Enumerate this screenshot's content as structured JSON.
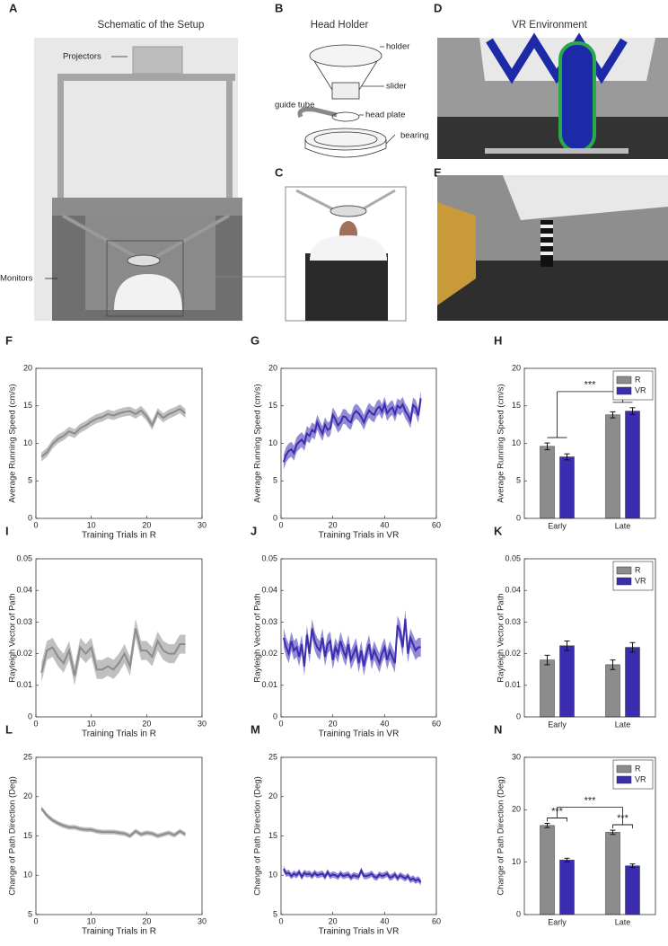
{
  "panels": [
    {
      "label": "A",
      "title": "Schematic of the Setup",
      "callouts": [
        "Projectors",
        "Monitors"
      ]
    },
    {
      "label": "B",
      "title": "Head Holder",
      "callouts": [
        "holder",
        "slider",
        "guide tube",
        "head plate",
        "bearing"
      ]
    },
    {
      "label": "C"
    },
    {
      "label": "D",
      "title": "VR Environment"
    },
    {
      "label": "E"
    }
  ],
  "chart_data": [
    {
      "type": "line",
      "label": "F",
      "y_label": "Average Running Speed (cm/s)",
      "x_label": "Training Trials in R",
      "xlim": [
        0,
        30
      ],
      "xticks": [
        0,
        10,
        20,
        30
      ],
      "ylim": [
        0,
        20
      ],
      "yticks": [
        0,
        5,
        10,
        15,
        20
      ],
      "x": [
        1,
        2,
        3,
        4,
        5,
        6,
        7,
        8,
        9,
        10,
        11,
        12,
        13,
        14,
        15,
        16,
        17,
        18,
        19,
        20,
        21,
        22,
        23,
        24,
        25,
        26,
        27
      ],
      "series": [
        {
          "name": "R",
          "color": "#8c8c8c",
          "error": 0.6,
          "values": [
            8.2,
            8.8,
            9.9,
            10.6,
            11.0,
            11.6,
            11.3,
            12.0,
            12.4,
            12.9,
            13.3,
            13.5,
            13.9,
            13.7,
            14.0,
            14.2,
            14.3,
            13.9,
            14.4,
            13.6,
            12.4,
            14.1,
            13.4,
            13.9,
            14.2,
            14.6,
            14.0
          ]
        }
      ]
    },
    {
      "type": "line",
      "label": "G",
      "y_label": "Average Running Speed (cm/s)",
      "x_label": "Training Trials in VR",
      "xlim": [
        0,
        60
      ],
      "xticks": [
        0,
        20,
        40,
        60
      ],
      "ylim": [
        0,
        20
      ],
      "yticks": [
        0,
        5,
        10,
        15,
        20
      ],
      "x": [
        1,
        2,
        3,
        4,
        5,
        6,
        7,
        8,
        9,
        10,
        11,
        12,
        13,
        14,
        15,
        16,
        17,
        18,
        19,
        20,
        21,
        22,
        23,
        24,
        25,
        26,
        27,
        28,
        29,
        30,
        31,
        32,
        33,
        34,
        35,
        36,
        37,
        38,
        39,
        40,
        41,
        42,
        43,
        44,
        45,
        46,
        47,
        48,
        49,
        50,
        51,
        52,
        53,
        54
      ],
      "series": [
        {
          "name": "VR",
          "color": "#3b2cb0",
          "error": 1.0,
          "values": [
            7.5,
            8.5,
            9,
            9.2,
            8.7,
            9.8,
            10.2,
            10.5,
            10.0,
            11.3,
            11.0,
            11.8,
            11.5,
            12.8,
            12.0,
            11.3,
            12.5,
            11.8,
            12.0,
            13.8,
            13.2,
            12.4,
            12.8,
            13.6,
            13.5,
            13.0,
            12.8,
            13.9,
            14.3,
            14.0,
            13.5,
            12.8,
            13.7,
            14.4,
            14.0,
            13.8,
            14.6,
            14.9,
            14.2,
            15.2,
            14.0,
            14.5,
            14.8,
            13.9,
            15.0,
            14.7,
            15.2,
            14.3,
            13.8,
            13.0,
            15.1,
            14.8,
            13.7,
            16.0
          ]
        }
      ]
    },
    {
      "type": "bar",
      "label": "H",
      "y_label": "Average Running Speed (cm/s)",
      "categories": [
        "Early",
        "Late"
      ],
      "ylim": [
        0,
        20
      ],
      "yticks": [
        0,
        5,
        10,
        15,
        20
      ],
      "legend": "upper right",
      "series": [
        {
          "name": "R",
          "color": "#8c8c8c",
          "values": [
            9.6,
            13.8
          ],
          "errors": [
            0.45,
            0.4
          ]
        },
        {
          "name": "VR",
          "color": "#3b2cb0",
          "values": [
            8.2,
            14.3
          ],
          "errors": [
            0.4,
            0.45
          ]
        }
      ],
      "annotations": [
        {
          "text": "***",
          "span": "groups"
        }
      ]
    },
    {
      "type": "line",
      "label": "I",
      "y_label": "Rayleigh Vector of Path",
      "x_label": "Training Trials in R",
      "xlim": [
        0,
        30
      ],
      "xticks": [
        0,
        10,
        20,
        30
      ],
      "ylim": [
        0,
        0.05
      ],
      "yticks": [
        0,
        0.01,
        0.02,
        0.03,
        0.04,
        0.05
      ],
      "x": [
        1,
        2,
        3,
        4,
        5,
        6,
        7,
        8,
        9,
        10,
        11,
        12,
        13,
        14,
        15,
        16,
        17,
        18,
        19,
        20,
        21,
        22,
        23,
        24,
        25,
        26,
        27
      ],
      "series": [
        {
          "name": "R",
          "color": "#8c8c8c",
          "error": 0.003,
          "values": [
            0.014,
            0.021,
            0.022,
            0.019,
            0.017,
            0.021,
            0.013,
            0.022,
            0.02,
            0.022,
            0.015,
            0.015,
            0.016,
            0.015,
            0.017,
            0.02,
            0.016,
            0.028,
            0.021,
            0.021,
            0.019,
            0.024,
            0.021,
            0.02,
            0.02,
            0.023,
            0.023
          ]
        }
      ]
    },
    {
      "type": "line",
      "label": "J",
      "y_label": "Rayleigh Vector of Path",
      "x_label": "Training Trials in VR",
      "xlim": [
        0,
        60
      ],
      "xticks": [
        0,
        20,
        40,
        60
      ],
      "ylim": [
        0,
        0.05
      ],
      "yticks": [
        0,
        0.01,
        0.02,
        0.03,
        0.04,
        0.05
      ],
      "x": [
        1,
        2,
        3,
        4,
        5,
        6,
        7,
        8,
        9,
        10,
        11,
        12,
        13,
        14,
        15,
        16,
        17,
        18,
        19,
        20,
        21,
        22,
        23,
        24,
        25,
        26,
        27,
        28,
        29,
        30,
        31,
        32,
        33,
        34,
        35,
        36,
        37,
        38,
        39,
        40,
        41,
        42,
        43,
        44,
        45,
        46,
        47,
        48,
        49,
        50,
        51,
        52,
        53,
        54
      ],
      "series": [
        {
          "name": "VR",
          "color": "#3b2cb0",
          "error": 0.003,
          "values": [
            0.025,
            0.022,
            0.02,
            0.024,
            0.021,
            0.022,
            0.019,
            0.023,
            0.016,
            0.026,
            0.02,
            0.028,
            0.024,
            0.022,
            0.021,
            0.025,
            0.019,
            0.023,
            0.024,
            0.018,
            0.022,
            0.02,
            0.024,
            0.021,
            0.019,
            0.023,
            0.018,
            0.02,
            0.022,
            0.017,
            0.021,
            0.016,
            0.02,
            0.023,
            0.018,
            0.021,
            0.019,
            0.017,
            0.02,
            0.022,
            0.018,
            0.021,
            0.019,
            0.017,
            0.029,
            0.027,
            0.022,
            0.031,
            0.02,
            0.025,
            0.023,
            0.021,
            0.022,
            0.022
          ]
        }
      ]
    },
    {
      "type": "bar",
      "label": "K",
      "y_label": "Rayleigh Vector of Path",
      "categories": [
        "Early",
        "Late"
      ],
      "ylim": [
        0,
        0.05
      ],
      "yticks": [
        0,
        0.01,
        0.02,
        0.03,
        0.04,
        0.05
      ],
      "legend": "upper right",
      "series": [
        {
          "name": "R",
          "color": "#8c8c8c",
          "values": [
            0.018,
            0.0165
          ],
          "errors": [
            0.0015,
            0.0015
          ]
        },
        {
          "name": "VR",
          "color": "#3b2cb0",
          "values": [
            0.0225,
            0.022
          ],
          "errors": [
            0.0015,
            0.0015
          ]
        }
      ],
      "annotations": []
    },
    {
      "type": "line",
      "label": "L",
      "y_label": "Change of Path Direction (Deg)",
      "x_label": "Training Trials in R",
      "xlim": [
        0,
        30
      ],
      "xticks": [
        0,
        10,
        20,
        30
      ],
      "ylim": [
        5,
        25
      ],
      "yticks": [
        5,
        10,
        15,
        20,
        25
      ],
      "x": [
        1,
        2,
        3,
        4,
        5,
        6,
        7,
        8,
        9,
        10,
        11,
        12,
        13,
        14,
        15,
        16,
        17,
        18,
        19,
        20,
        21,
        22,
        23,
        24,
        25,
        26,
        27
      ],
      "series": [
        {
          "name": "R",
          "color": "#8c8c8c",
          "error": 0.3,
          "values": [
            18.5,
            17.6,
            17.0,
            16.6,
            16.3,
            16.1,
            16.1,
            15.9,
            15.8,
            15.8,
            15.6,
            15.5,
            15.5,
            15.5,
            15.4,
            15.3,
            15.0,
            15.6,
            15.2,
            15.4,
            15.3,
            15.0,
            15.2,
            15.4,
            15.1,
            15.6,
            15.2
          ]
        }
      ]
    },
    {
      "type": "line",
      "label": "M",
      "y_label": "Change of Path Direction (Deg)",
      "x_label": "Training Trials in VR",
      "xlim": [
        0,
        60
      ],
      "xticks": [
        0,
        20,
        40,
        60
      ],
      "ylim": [
        5,
        25
      ],
      "yticks": [
        5,
        10,
        15,
        20,
        25
      ],
      "x": [
        1,
        2,
        3,
        4,
        5,
        6,
        7,
        8,
        9,
        10,
        11,
        12,
        13,
        14,
        15,
        16,
        17,
        18,
        19,
        20,
        21,
        22,
        23,
        24,
        25,
        26,
        27,
        28,
        29,
        30,
        31,
        32,
        33,
        34,
        35,
        36,
        37,
        38,
        39,
        40,
        41,
        42,
        43,
        44,
        45,
        46,
        47,
        48,
        49,
        50,
        51,
        52,
        53,
        54
      ],
      "series": [
        {
          "name": "VR",
          "color": "#3b2cb0",
          "error": 0.4,
          "values": [
            10.8,
            10.2,
            10.3,
            9.9,
            10.2,
            10.0,
            10.4,
            9.8,
            10.3,
            10.1,
            10.2,
            9.9,
            10.3,
            10.0,
            10.1,
            10.2,
            9.8,
            10.4,
            9.9,
            10.1,
            10.0,
            9.8,
            10.2,
            9.9,
            10.0,
            10.1,
            9.7,
            10.0,
            9.9,
            9.8,
            10.6,
            9.9,
            9.9,
            10.0,
            10.2,
            9.8,
            9.7,
            10.1,
            9.9,
            10.0,
            10.2,
            9.7,
            9.8,
            10.1,
            9.6,
            10.0,
            9.8,
            9.6,
            9.9,
            9.4,
            9.6,
            9.3,
            9.5,
            9.1
          ]
        }
      ]
    },
    {
      "type": "bar",
      "label": "N",
      "y_label": "Change of Path Direction (Deg)",
      "categories": [
        "Early",
        "Late"
      ],
      "ylim": [
        0,
        30
      ],
      "yticks": [
        0,
        10,
        20,
        30
      ],
      "legend": "upper right",
      "series": [
        {
          "name": "R",
          "color": "#8c8c8c",
          "values": [
            17.0,
            15.7
          ],
          "errors": [
            0.4,
            0.4
          ]
        },
        {
          "name": "VR",
          "color": "#3b2cb0",
          "values": [
            10.4,
            9.3
          ],
          "errors": [
            0.35,
            0.35
          ]
        }
      ],
      "annotations": [
        {
          "text": "***",
          "span": 0
        },
        {
          "text": "***",
          "span": "groups"
        },
        {
          "text": "***",
          "span": 1
        }
      ]
    }
  ]
}
